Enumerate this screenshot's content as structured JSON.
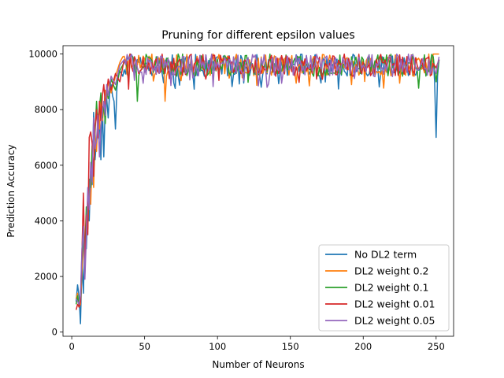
{
  "chart_data": {
    "type": "line",
    "title": "Pruning for different epsilon values",
    "xlabel": "Number of Neurons",
    "ylabel": "Prediction Accuracy",
    "xlim": [
      -6,
      262
    ],
    "ylim": [
      -150,
      10300
    ],
    "x_ticks": [
      0,
      50,
      100,
      150,
      200,
      250
    ],
    "y_ticks": [
      0,
      2000,
      4000,
      6000,
      8000,
      10000
    ],
    "legend_position": "lower right",
    "x_start": 3,
    "x_end": 252,
    "x_step": 1,
    "series": [
      {
        "name": "No DL2 term",
        "color": "#1f77b4",
        "keypoints": [
          [
            3,
            1100
          ],
          [
            4,
            1700
          ],
          [
            5,
            1300
          ],
          [
            6,
            300
          ],
          [
            7,
            2500
          ],
          [
            8,
            1400
          ],
          [
            9,
            3400
          ],
          [
            10,
            3000
          ],
          [
            11,
            4400
          ],
          [
            12,
            4000
          ],
          [
            13,
            5800
          ],
          [
            14,
            5300
          ],
          [
            15,
            7900
          ],
          [
            16,
            6200
          ],
          [
            17,
            6900
          ],
          [
            18,
            7000
          ],
          [
            19,
            7600
          ],
          [
            20,
            6200
          ],
          [
            21,
            8100
          ],
          [
            22,
            6300
          ],
          [
            23,
            8200
          ],
          [
            24,
            8400
          ],
          [
            25,
            7700
          ],
          [
            26,
            8600
          ],
          [
            27,
            8900
          ],
          [
            28,
            8500
          ],
          [
            29,
            8300
          ],
          [
            30,
            7300
          ],
          [
            31,
            8800
          ],
          [
            32,
            9200
          ],
          [
            33,
            9400
          ],
          [
            35,
            9200
          ],
          [
            38,
            9900
          ],
          [
            40,
            10000
          ],
          [
            45,
            9800
          ],
          [
            60,
            9700
          ],
          [
            100,
            9900
          ],
          [
            150,
            9800
          ],
          [
            200,
            9700
          ],
          [
            245,
            9800
          ],
          [
            248,
            9900
          ],
          [
            249,
            9000
          ],
          [
            250,
            7000
          ],
          [
            251,
            9200
          ],
          [
            252,
            9800
          ]
        ]
      },
      {
        "name": "DL2 weight 0.2",
        "color": "#ff7f0e",
        "keypoints": [
          [
            3,
            1200
          ],
          [
            4,
            1400
          ],
          [
            5,
            900
          ],
          [
            6,
            1000
          ],
          [
            7,
            2200
          ],
          [
            8,
            3100
          ],
          [
            9,
            2800
          ],
          [
            10,
            4200
          ],
          [
            11,
            3700
          ],
          [
            12,
            5300
          ],
          [
            13,
            4600
          ],
          [
            14,
            6400
          ],
          [
            15,
            5200
          ],
          [
            16,
            7100
          ],
          [
            17,
            6500
          ],
          [
            18,
            7800
          ],
          [
            19,
            7300
          ],
          [
            20,
            8300
          ],
          [
            21,
            7600
          ],
          [
            22,
            8000
          ],
          [
            23,
            8700
          ],
          [
            24,
            8400
          ],
          [
            25,
            9000
          ],
          [
            27,
            8600
          ],
          [
            30,
            9200
          ],
          [
            33,
            9700
          ],
          [
            35,
            9900
          ],
          [
            40,
            10000
          ],
          [
            45,
            9600
          ],
          [
            64,
            8300
          ],
          [
            66,
            9400
          ],
          [
            100,
            9800
          ],
          [
            150,
            9700
          ],
          [
            200,
            9800
          ],
          [
            230,
            9700
          ],
          [
            245,
            10000
          ],
          [
            252,
            10000
          ]
        ]
      },
      {
        "name": "DL2 weight 0.1",
        "color": "#2ca02c",
        "keypoints": [
          [
            3,
            1000
          ],
          [
            4,
            1300
          ],
          [
            5,
            900
          ],
          [
            6,
            1200
          ],
          [
            7,
            2600
          ],
          [
            8,
            3300
          ],
          [
            9,
            3000
          ],
          [
            10,
            4500
          ],
          [
            11,
            3900
          ],
          [
            12,
            5500
          ],
          [
            13,
            5200
          ],
          [
            14,
            6700
          ],
          [
            15,
            5600
          ],
          [
            16,
            7200
          ],
          [
            17,
            8300
          ],
          [
            18,
            7500
          ],
          [
            19,
            8100
          ],
          [
            20,
            8600
          ],
          [
            21,
            7700
          ],
          [
            22,
            8200
          ],
          [
            23,
            7500
          ],
          [
            24,
            8800
          ],
          [
            25,
            8400
          ],
          [
            27,
            9100
          ],
          [
            30,
            8700
          ],
          [
            33,
            9400
          ],
          [
            36,
            9700
          ],
          [
            40,
            9900
          ],
          [
            45,
            8300
          ],
          [
            47,
            9400
          ],
          [
            60,
            9700
          ],
          [
            100,
            9800
          ],
          [
            150,
            9600
          ],
          [
            200,
            9800
          ],
          [
            240,
            9600
          ],
          [
            248,
            9900
          ],
          [
            250,
            9000
          ],
          [
            252,
            9800
          ]
        ]
      },
      {
        "name": "DL2 weight 0.01",
        "color": "#d62728",
        "keypoints": [
          [
            3,
            800
          ],
          [
            4,
            1000
          ],
          [
            5,
            900
          ],
          [
            6,
            1100
          ],
          [
            7,
            2900
          ],
          [
            8,
            5000
          ],
          [
            9,
            2100
          ],
          [
            10,
            4200
          ],
          [
            11,
            3500
          ],
          [
            12,
            7000
          ],
          [
            13,
            7200
          ],
          [
            14,
            6800
          ],
          [
            15,
            5600
          ],
          [
            16,
            7400
          ],
          [
            17,
            8000
          ],
          [
            18,
            7000
          ],
          [
            19,
            8300
          ],
          [
            20,
            7600
          ],
          [
            21,
            8500
          ],
          [
            22,
            8900
          ],
          [
            23,
            8200
          ],
          [
            24,
            8600
          ],
          [
            25,
            9100
          ],
          [
            27,
            8700
          ],
          [
            30,
            9300
          ],
          [
            33,
            9000
          ],
          [
            36,
            9800
          ],
          [
            40,
            10000
          ],
          [
            45,
            9500
          ],
          [
            60,
            9300
          ],
          [
            100,
            9700
          ],
          [
            150,
            9600
          ],
          [
            200,
            9700
          ],
          [
            245,
            9900
          ],
          [
            250,
            9500
          ],
          [
            252,
            9800
          ]
        ]
      },
      {
        "name": "DL2 weight 0.05",
        "color": "#9467bd",
        "keypoints": [
          [
            3,
            1200
          ],
          [
            4,
            1100
          ],
          [
            5,
            1000
          ],
          [
            6,
            1300
          ],
          [
            7,
            3000
          ],
          [
            8,
            3800
          ],
          [
            9,
            1900
          ],
          [
            10,
            3400
          ],
          [
            11,
            5200
          ],
          [
            12,
            4400
          ],
          [
            13,
            6100
          ],
          [
            14,
            5400
          ],
          [
            15,
            7700
          ],
          [
            16,
            6600
          ],
          [
            17,
            6900
          ],
          [
            18,
            7800
          ],
          [
            19,
            6300
          ],
          [
            20,
            7400
          ],
          [
            21,
            7900
          ],
          [
            22,
            8300
          ],
          [
            23,
            7800
          ],
          [
            24,
            8900
          ],
          [
            25,
            8500
          ],
          [
            27,
            9200
          ],
          [
            30,
            8900
          ],
          [
            33,
            9600
          ],
          [
            36,
            9800
          ],
          [
            40,
            9900
          ],
          [
            45,
            9500
          ],
          [
            60,
            9300
          ],
          [
            100,
            9700
          ],
          [
            150,
            9500
          ],
          [
            200,
            9600
          ],
          [
            245,
            9800
          ],
          [
            250,
            9300
          ],
          [
            252,
            9900
          ]
        ]
      }
    ]
  }
}
